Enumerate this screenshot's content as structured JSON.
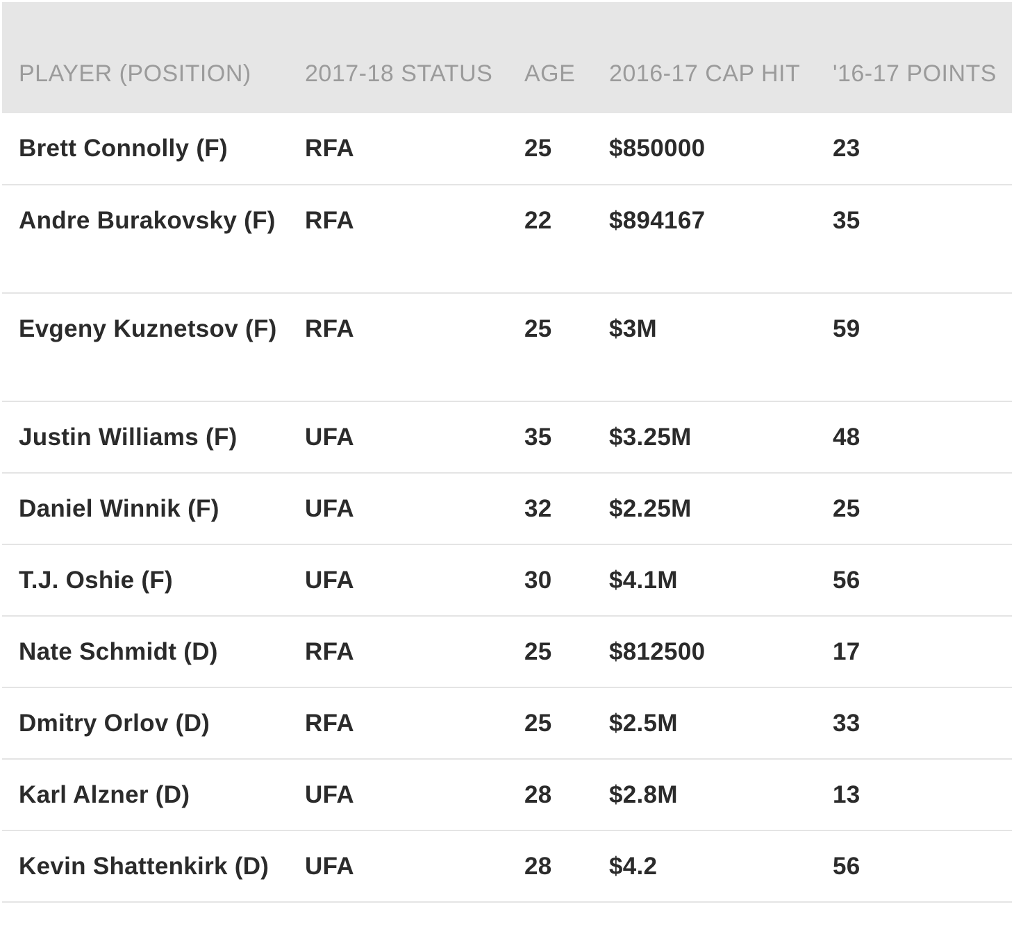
{
  "table": {
    "headers": {
      "player": "PLAYER (POSITION)",
      "status": "2017-18 STATUS",
      "age": "AGE",
      "cap_hit": "2016-17 CAP HIT",
      "points": "'16-17 POINTS"
    },
    "rows": [
      {
        "player": "Brett Connolly (F)",
        "status": "RFA",
        "age": "25",
        "cap_hit": "$850000",
        "points": "23"
      },
      {
        "player": "Andre Burakovsky (F)",
        "status": "RFA",
        "age": "22",
        "cap_hit": "$894167",
        "points": "35"
      },
      {
        "player": "Evgeny Kuznetsov (F)",
        "status": "RFA",
        "age": "25",
        "cap_hit": "$3M",
        "points": "59"
      },
      {
        "player": "Justin Williams (F)",
        "status": "UFA",
        "age": "35",
        "cap_hit": "$3.25M",
        "points": "48"
      },
      {
        "player": "Daniel Winnik (F)",
        "status": "UFA",
        "age": "32",
        "cap_hit": "$2.25M",
        "points": "25"
      },
      {
        "player": "T.J. Oshie (F)",
        "status": "UFA",
        "age": "30",
        "cap_hit": "$4.1M",
        "points": "56"
      },
      {
        "player": "Nate Schmidt (D)",
        "status": "RFA",
        "age": "25",
        "cap_hit": "$812500",
        "points": "17"
      },
      {
        "player": "Dmitry Orlov (D)",
        "status": "RFA",
        "age": "25",
        "cap_hit": "$2.5M",
        "points": "33"
      },
      {
        "player": "Karl Alzner (D)",
        "status": "UFA",
        "age": "28",
        "cap_hit": "$2.8M",
        "points": "13"
      },
      {
        "player": "Kevin Shattenkirk (D)",
        "status": "UFA",
        "age": "28",
        "cap_hit": "$4.2",
        "points": "56"
      }
    ]
  }
}
